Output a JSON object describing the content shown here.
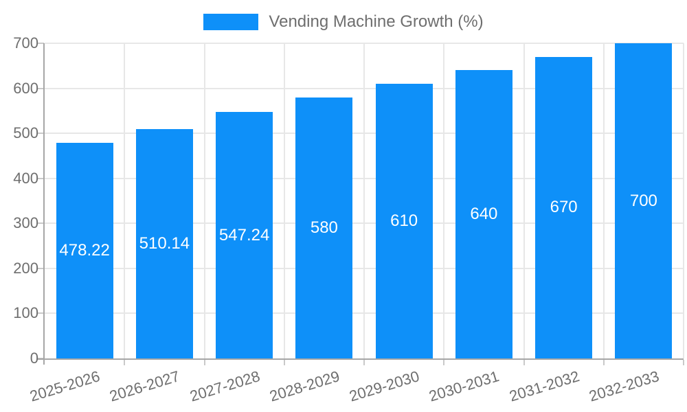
{
  "chart_data": {
    "type": "bar",
    "title": "Vending Machine Growth (%)",
    "categories": [
      "2025-2026",
      "2026-2027",
      "2027-2028",
      "2028-2029",
      "2029-2030",
      "2030-2031",
      "2031-2032",
      "2032-2033"
    ],
    "values": [
      478.22,
      510.14,
      547.24,
      580,
      610,
      640,
      670,
      700
    ],
    "value_labels": [
      "478.22",
      "510.14",
      "547.24",
      "580",
      "610",
      "640",
      "670",
      "700"
    ],
    "xlabel": "",
    "ylabel": "",
    "ylim": [
      0,
      700
    ],
    "yticks": [
      0,
      100,
      200,
      300,
      400,
      500,
      600,
      700
    ],
    "grid": true,
    "legend_position": "top-center"
  },
  "legend": {
    "label": "Vending Machine Growth (%)"
  },
  "colors": {
    "bar": "#0e90f9",
    "grid": "#e7e7e7",
    "axis": "#a6a6a6",
    "tick": "#c9c9c9",
    "axis_text": "#6e6e6e",
    "bar_label": "#ffffff",
    "background": "#ffffff"
  }
}
